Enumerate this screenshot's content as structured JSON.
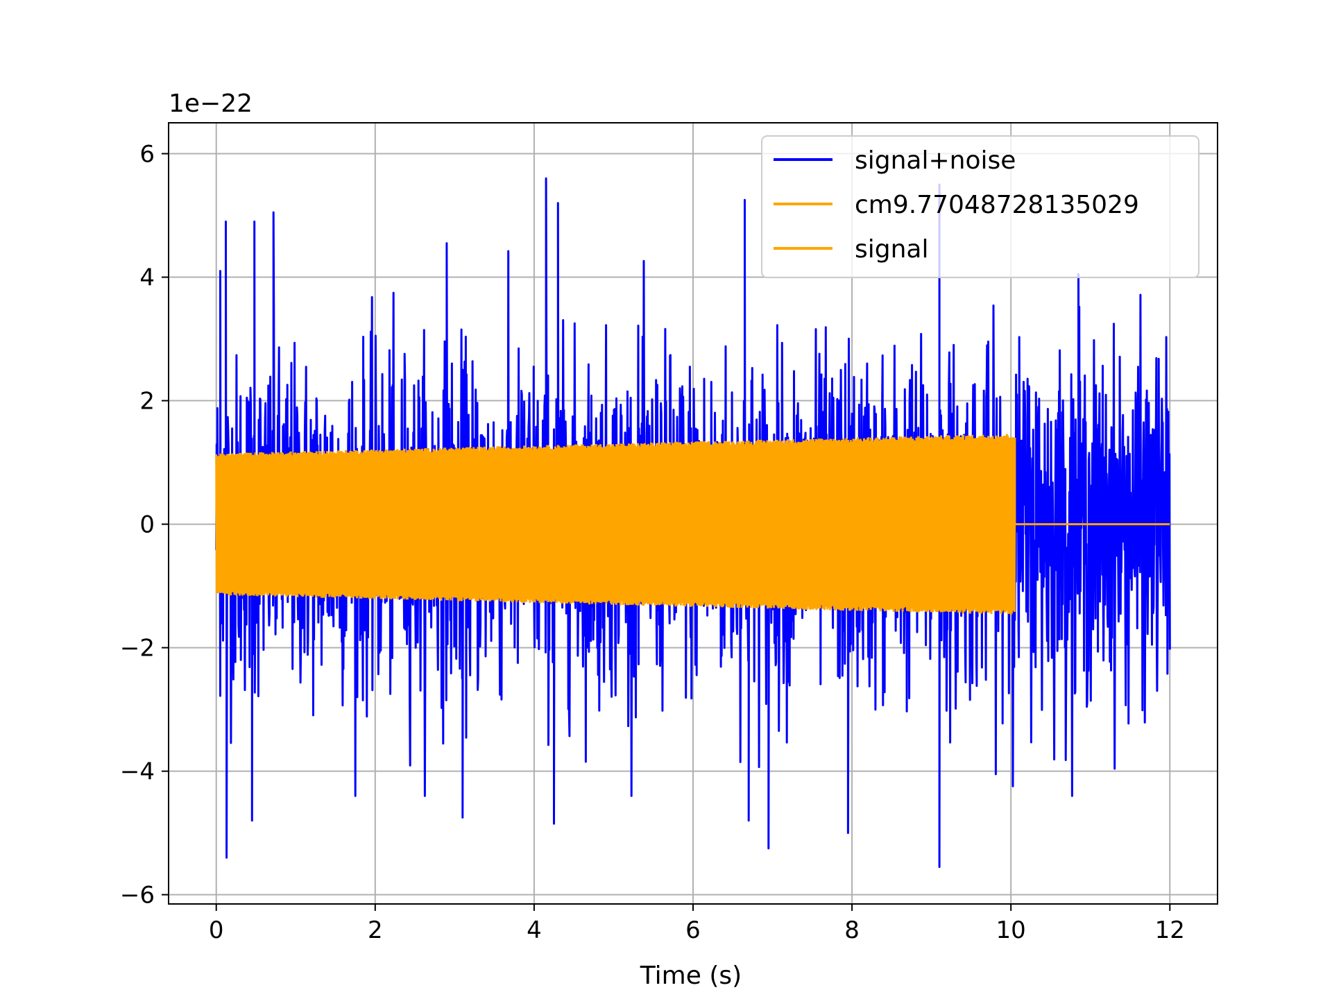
{
  "chart_data": {
    "type": "line",
    "title": "",
    "xlabel": "Time (s)",
    "ylabel": "",
    "y_offset_label": "1e−22",
    "xlim": [
      -0.6,
      12.6
    ],
    "ylim": [
      -6.15,
      6.5
    ],
    "x_ticks": [
      0,
      2,
      4,
      6,
      8,
      10,
      12
    ],
    "y_ticks": [
      -6,
      -4,
      -2,
      0,
      2,
      4,
      6
    ],
    "x_tick_labels": [
      "0",
      "2",
      "4",
      "6",
      "8",
      "10",
      "12"
    ],
    "y_tick_labels": [
      "−6",
      "−4",
      "−2",
      "0",
      "2",
      "4",
      "6"
    ],
    "grid": true,
    "legend_position": "upper right",
    "series": [
      {
        "name": "signal+noise",
        "color": "#0000ff",
        "description": "noisy time series spanning 0 to 12 s",
        "x_range": [
          0,
          12
        ],
        "typical_envelope": [
          -3.0,
          3.0
        ],
        "max": 5.6,
        "min": -5.5,
        "notable_peaks": [
          {
            "x": 0.05,
            "y": 4.1
          },
          {
            "x": 0.12,
            "y": 4.9
          },
          {
            "x": 0.48,
            "y": 4.9
          },
          {
            "x": 0.72,
            "y": 5.05
          },
          {
            "x": 2.9,
            "y": 4.55
          },
          {
            "x": 4.15,
            "y": 5.6
          },
          {
            "x": 4.3,
            "y": 5.2
          },
          {
            "x": 6.65,
            "y": 5.25
          },
          {
            "x": 9.1,
            "y": 5.5
          },
          {
            "x": 10.85,
            "y": 4.05
          }
        ],
        "notable_troughs": [
          {
            "x": 0.13,
            "y": -5.4
          },
          {
            "x": 0.45,
            "y": -4.8
          },
          {
            "x": 3.1,
            "y": -4.75
          },
          {
            "x": 4.25,
            "y": -4.85
          },
          {
            "x": 6.7,
            "y": -4.8
          },
          {
            "x": 6.95,
            "y": -5.25
          },
          {
            "x": 7.95,
            "y": -5.0
          },
          {
            "x": 9.1,
            "y": -5.55
          }
        ]
      },
      {
        "name": "cm9.77048728135029",
        "color": "#ffa500",
        "description": "no separate trace distinguishable from the signal series",
        "values": []
      },
      {
        "name": "signal",
        "color": "#ffa500",
        "description": "sinusoid with slowly growing amplitude from 0 to 10 s, then zero to 12 s",
        "x_range": [
          0,
          12
        ],
        "amplitude_start": 1.15,
        "amplitude_end": 1.47,
        "end_of_signal_time": 10.05,
        "value_after_end": 0
      }
    ]
  }
}
